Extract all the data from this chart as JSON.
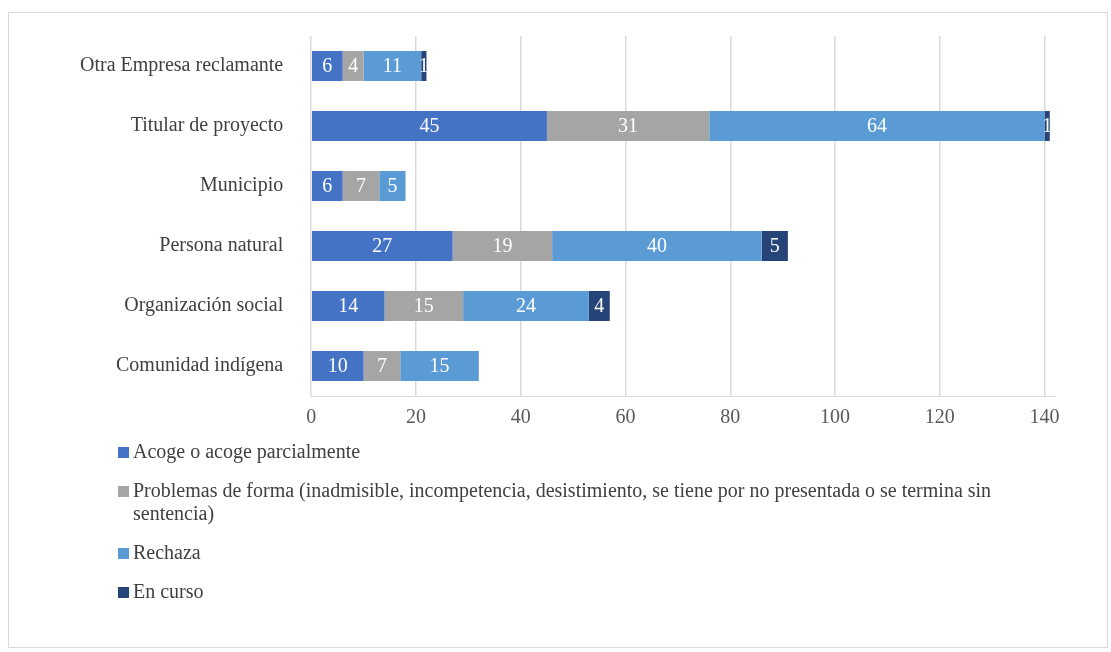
{
  "chart_data": {
    "type": "bar",
    "orientation": "horizontal",
    "stacked": true,
    "data_labels": true,
    "grid": "x",
    "legend": "bottom",
    "categories": [
      "Otra Empresa reclamante",
      "Titular de proyecto",
      "Municipio",
      "Persona natural",
      "Organización social",
      "Comunidad indígena"
    ],
    "series": [
      {
        "name": "Acoge o acoge parcialmente",
        "color": "#4472c4",
        "values": [
          6,
          45,
          6,
          27,
          14,
          10
        ]
      },
      {
        "name": "Problemas de forma (inadmisible, incompetencia, desistimiento, se tiene por no presentada o se termina sin sentencia)",
        "color": "#a5a5a5",
        "values": [
          4,
          31,
          7,
          19,
          15,
          7
        ]
      },
      {
        "name": "Rechaza",
        "color": "#5b9bd5",
        "values": [
          11,
          64,
          5,
          40,
          24,
          15
        ]
      },
      {
        "name": "En curso",
        "color": "#264478",
        "values": [
          1,
          1,
          null,
          5,
          4,
          null
        ]
      }
    ],
    "xlim": [
      0,
      142
    ],
    "xticks": [
      0,
      20,
      40,
      60,
      80,
      100,
      120,
      140
    ]
  }
}
